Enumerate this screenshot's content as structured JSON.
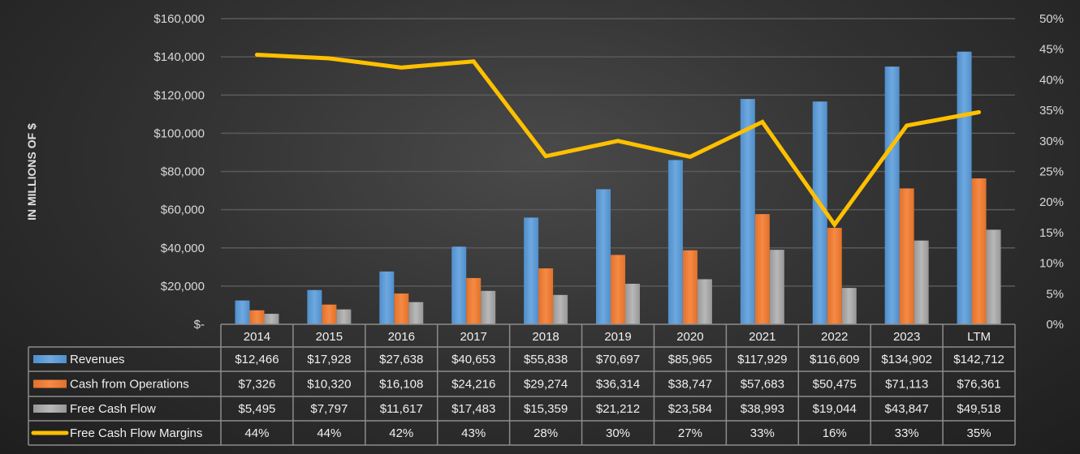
{
  "chart_data": {
    "type": "bar+line",
    "ylabel": "IN MILLIONS OF $",
    "categories": [
      "2014",
      "2015",
      "2016",
      "2017",
      "2018",
      "2019",
      "2020",
      "2021",
      "2022",
      "2023",
      "LTM"
    ],
    "ylim": [
      0,
      160000
    ],
    "y_ticks": [
      "$-",
      "$20,000",
      "$40,000",
      "$60,000",
      "$80,000",
      "$100,000",
      "$120,000",
      "$140,000",
      "$160,000"
    ],
    "y2lim": [
      0,
      50
    ],
    "y2_ticks": [
      "0%",
      "5%",
      "10%",
      "15%",
      "20%",
      "25%",
      "30%",
      "35%",
      "40%",
      "45%",
      "50%"
    ],
    "grid": true,
    "legend": "data-table-bottom",
    "series": [
      {
        "name": "Revenues",
        "type": "bar",
        "color": "#5b9bd5",
        "values": [
          12466,
          17928,
          27638,
          40653,
          55838,
          70697,
          85965,
          117929,
          116609,
          134902,
          142712
        ],
        "labels": [
          "$12,466",
          "$17,928",
          "$27,638",
          "$40,653",
          "$55,838",
          "$70,697",
          "$85,965",
          "$117,929",
          "$116,609",
          "$134,902",
          "$142,712"
        ]
      },
      {
        "name": "Cash from Operations",
        "type": "bar",
        "color": "#ed7d31",
        "values": [
          7326,
          10320,
          16108,
          24216,
          29274,
          36314,
          38747,
          57683,
          50475,
          71113,
          76361
        ],
        "labels": [
          "$7,326",
          "$10,320",
          "$16,108",
          "$24,216",
          "$29,274",
          "$36,314",
          "$38,747",
          "$57,683",
          "$50,475",
          "$71,113",
          "$76,361"
        ]
      },
      {
        "name": "Free Cash Flow",
        "type": "bar",
        "color": "#a5a5a5",
        "values": [
          5495,
          7797,
          11617,
          17483,
          15359,
          21212,
          23584,
          38993,
          19044,
          43847,
          49518
        ],
        "labels": [
          "$5,495",
          "$7,797",
          "$11,617",
          "$17,483",
          "$15,359",
          "$21,212",
          "$23,584",
          "$38,993",
          "$19,044",
          "$43,847",
          "$49,518"
        ]
      },
      {
        "name": "Free Cash Flow Margins",
        "type": "line",
        "axis": "right",
        "color": "#ffc000",
        "values": [
          44.1,
          43.5,
          42.0,
          43.0,
          27.5,
          30.0,
          27.4,
          33.1,
          16.3,
          32.5,
          34.7
        ],
        "labels": [
          "44%",
          "44%",
          "42%",
          "43%",
          "28%",
          "30%",
          "27%",
          "33%",
          "16%",
          "33%",
          "35%"
        ]
      }
    ]
  }
}
